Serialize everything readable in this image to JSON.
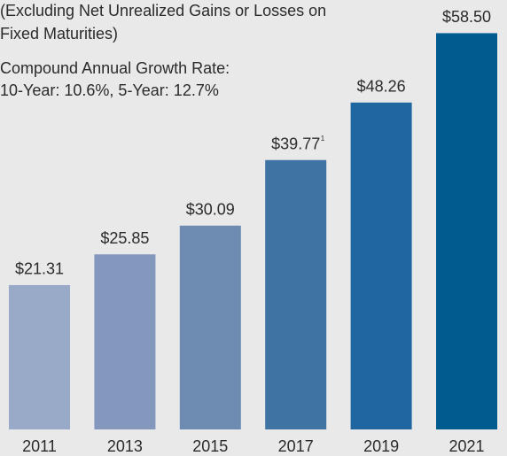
{
  "chart_data": {
    "type": "bar",
    "subtitle_lines": [
      "(Excluding Net Unrealized Gains or Losses on",
      "Fixed Maturities)",
      "Compound Annual Growth Rate:",
      "10-Year: 10.6%, 5-Year: 12.7%"
    ],
    "categories": [
      "2011",
      "2013",
      "2015",
      "2017",
      "2019",
      "2021"
    ],
    "values": [
      21.31,
      25.85,
      30.09,
      39.77,
      48.26,
      58.5
    ],
    "value_labels": [
      "$21.31",
      "$25.85",
      "$30.09",
      "$39.77",
      "$48.26",
      "$58.50"
    ],
    "value_label_notes": [
      null,
      null,
      null,
      "1",
      null,
      null
    ],
    "colors": [
      "#98aac8",
      "#8498bd",
      "#6e8bb2",
      "#3f73a3",
      "#2066a0",
      "#005b8f"
    ],
    "ylim": [
      0,
      60
    ]
  }
}
